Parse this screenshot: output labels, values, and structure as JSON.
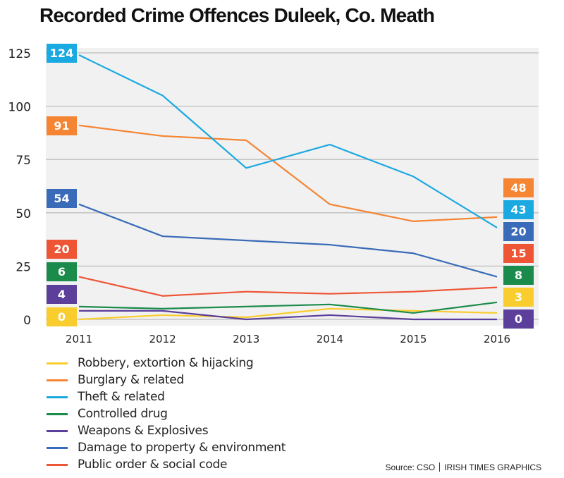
{
  "chart_data": {
    "type": "line",
    "title": "Recorded Crime Offences Duleek, Co. Meath",
    "xlabel": "",
    "ylabel": "",
    "x": [
      "2011",
      "2012",
      "2013",
      "2014",
      "2015",
      "2016"
    ],
    "yticks": [
      0,
      25,
      50,
      75,
      100,
      125
    ],
    "ylim": [
      0,
      125
    ],
    "grid": true,
    "legend_position": "bottom-left",
    "series": [
      {
        "name": "Robbery, extortion &  hijacking",
        "color": "#f9cd2e",
        "values": [
          0,
          2,
          1,
          5,
          4,
          3
        ]
      },
      {
        "name": "Burglary &  related",
        "color": "#f58433",
        "values": [
          91,
          86,
          84,
          54,
          46,
          48
        ]
      },
      {
        "name": "Theft &  related",
        "color": "#1ba9e1",
        "values": [
          124,
          105,
          71,
          82,
          67,
          43
        ]
      },
      {
        "name": "Controlled drug",
        "color": "#1a8b4a",
        "values": [
          6,
          5,
          6,
          7,
          3,
          8
        ]
      },
      {
        "name": "Weapons &  Explosives",
        "color": "#5b3f9a",
        "values": [
          4,
          4,
          0,
          2,
          0,
          0
        ]
      },
      {
        "name": "Damage to property & environment",
        "color": "#3a6bb8",
        "values": [
          54,
          39,
          37,
          35,
          31,
          20
        ]
      },
      {
        "name": "Public order & social code",
        "color": "#ed5535",
        "values": [
          20,
          11,
          13,
          12,
          13,
          15
        ]
      }
    ],
    "start_labels": [
      {
        "series": 2,
        "text": "124"
      },
      {
        "series": 1,
        "text": "91"
      },
      {
        "series": 5,
        "text": "54"
      },
      {
        "series": 6,
        "text": "20"
      },
      {
        "series": 3,
        "text": "6"
      },
      {
        "series": 4,
        "text": "4"
      },
      {
        "series": 0,
        "text": "0"
      }
    ],
    "end_labels": [
      {
        "series": 1,
        "text": "48"
      },
      {
        "series": 2,
        "text": "43"
      },
      {
        "series": 5,
        "text": "20"
      },
      {
        "series": 6,
        "text": "15"
      },
      {
        "series": 3,
        "text": "8"
      },
      {
        "series": 0,
        "text": "3"
      },
      {
        "series": 4,
        "text": "0"
      }
    ]
  },
  "footer": {
    "source": "Source: CSO",
    "credit": "IRISH TIMES GRAPHICS"
  }
}
